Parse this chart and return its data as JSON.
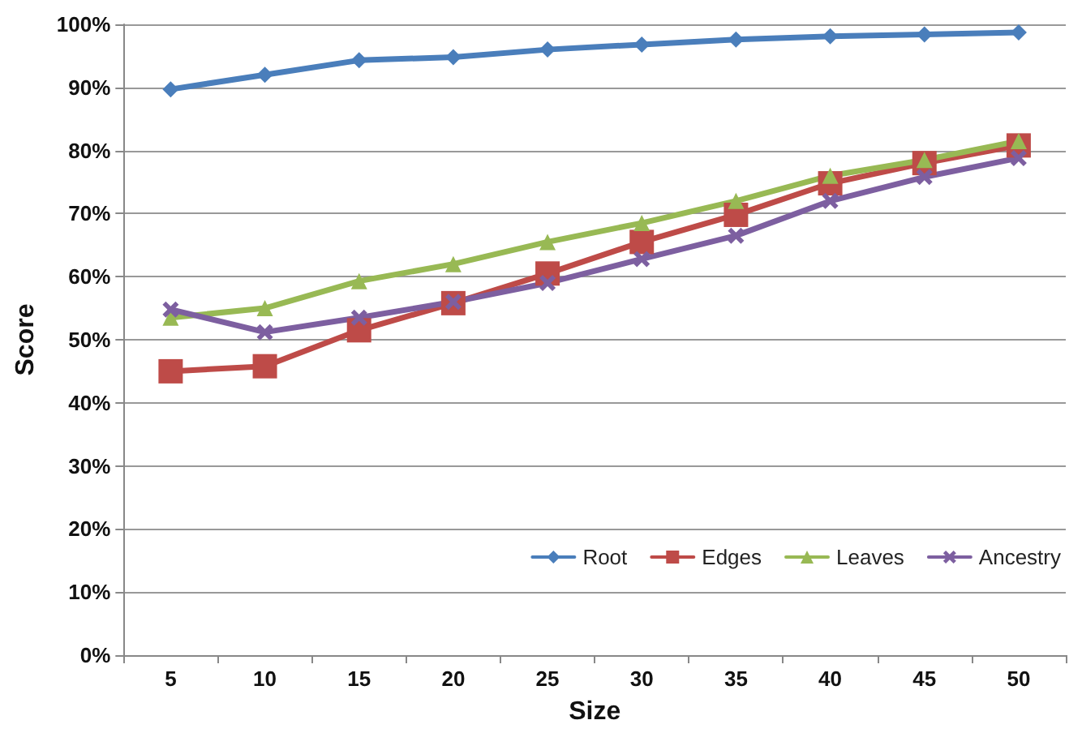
{
  "chart_data": {
    "type": "line",
    "xlabel": "Size",
    "ylabel": "Score",
    "categories": [
      "5",
      "10",
      "15",
      "20",
      "25",
      "30",
      "35",
      "40",
      "45",
      "50"
    ],
    "series": [
      {
        "name": "Root",
        "color": "#4a7ebb",
        "marker": "diamond",
        "values": [
          0.897,
          0.92,
          0.943,
          0.948,
          0.96,
          0.968,
          0.976,
          0.981,
          0.984,
          0.987
        ]
      },
      {
        "name": "Edges",
        "color": "#be4b48",
        "marker": "square",
        "values": [
          0.45,
          0.458,
          0.515,
          0.558,
          0.605,
          0.655,
          0.698,
          0.748,
          0.78,
          0.808
        ]
      },
      {
        "name": "Leaves",
        "color": "#98b954",
        "marker": "triangle",
        "values": [
          0.535,
          0.55,
          0.593,
          0.62,
          0.655,
          0.685,
          0.72,
          0.76,
          0.785,
          0.815
        ]
      },
      {
        "name": "Ancestry",
        "color": "#7d5fa0",
        "marker": "cross",
        "values": [
          0.548,
          0.512,
          0.535,
          0.56,
          0.59,
          0.628,
          0.665,
          0.72,
          0.758,
          0.788
        ]
      }
    ],
    "ylim": [
      0,
      1
    ],
    "yticks": [
      {
        "value": 0,
        "label": "0%"
      },
      {
        "value": 0.1,
        "label": "10%"
      },
      {
        "value": 0.2,
        "label": "20%"
      },
      {
        "value": 0.3,
        "label": "30%"
      },
      {
        "value": 0.4,
        "label": "40%"
      },
      {
        "value": 0.5,
        "label": "50%"
      },
      {
        "value": 0.6,
        "label": "60%"
      },
      {
        "value": 0.7,
        "label": "70%"
      },
      {
        "value": 0.8,
        "label": "80%"
      },
      {
        "value": 0.9,
        "label": "90%"
      },
      {
        "value": 1,
        "label": "100%"
      }
    ],
    "grid": "y",
    "legend": "bottom right",
    "line_style": "solid"
  }
}
